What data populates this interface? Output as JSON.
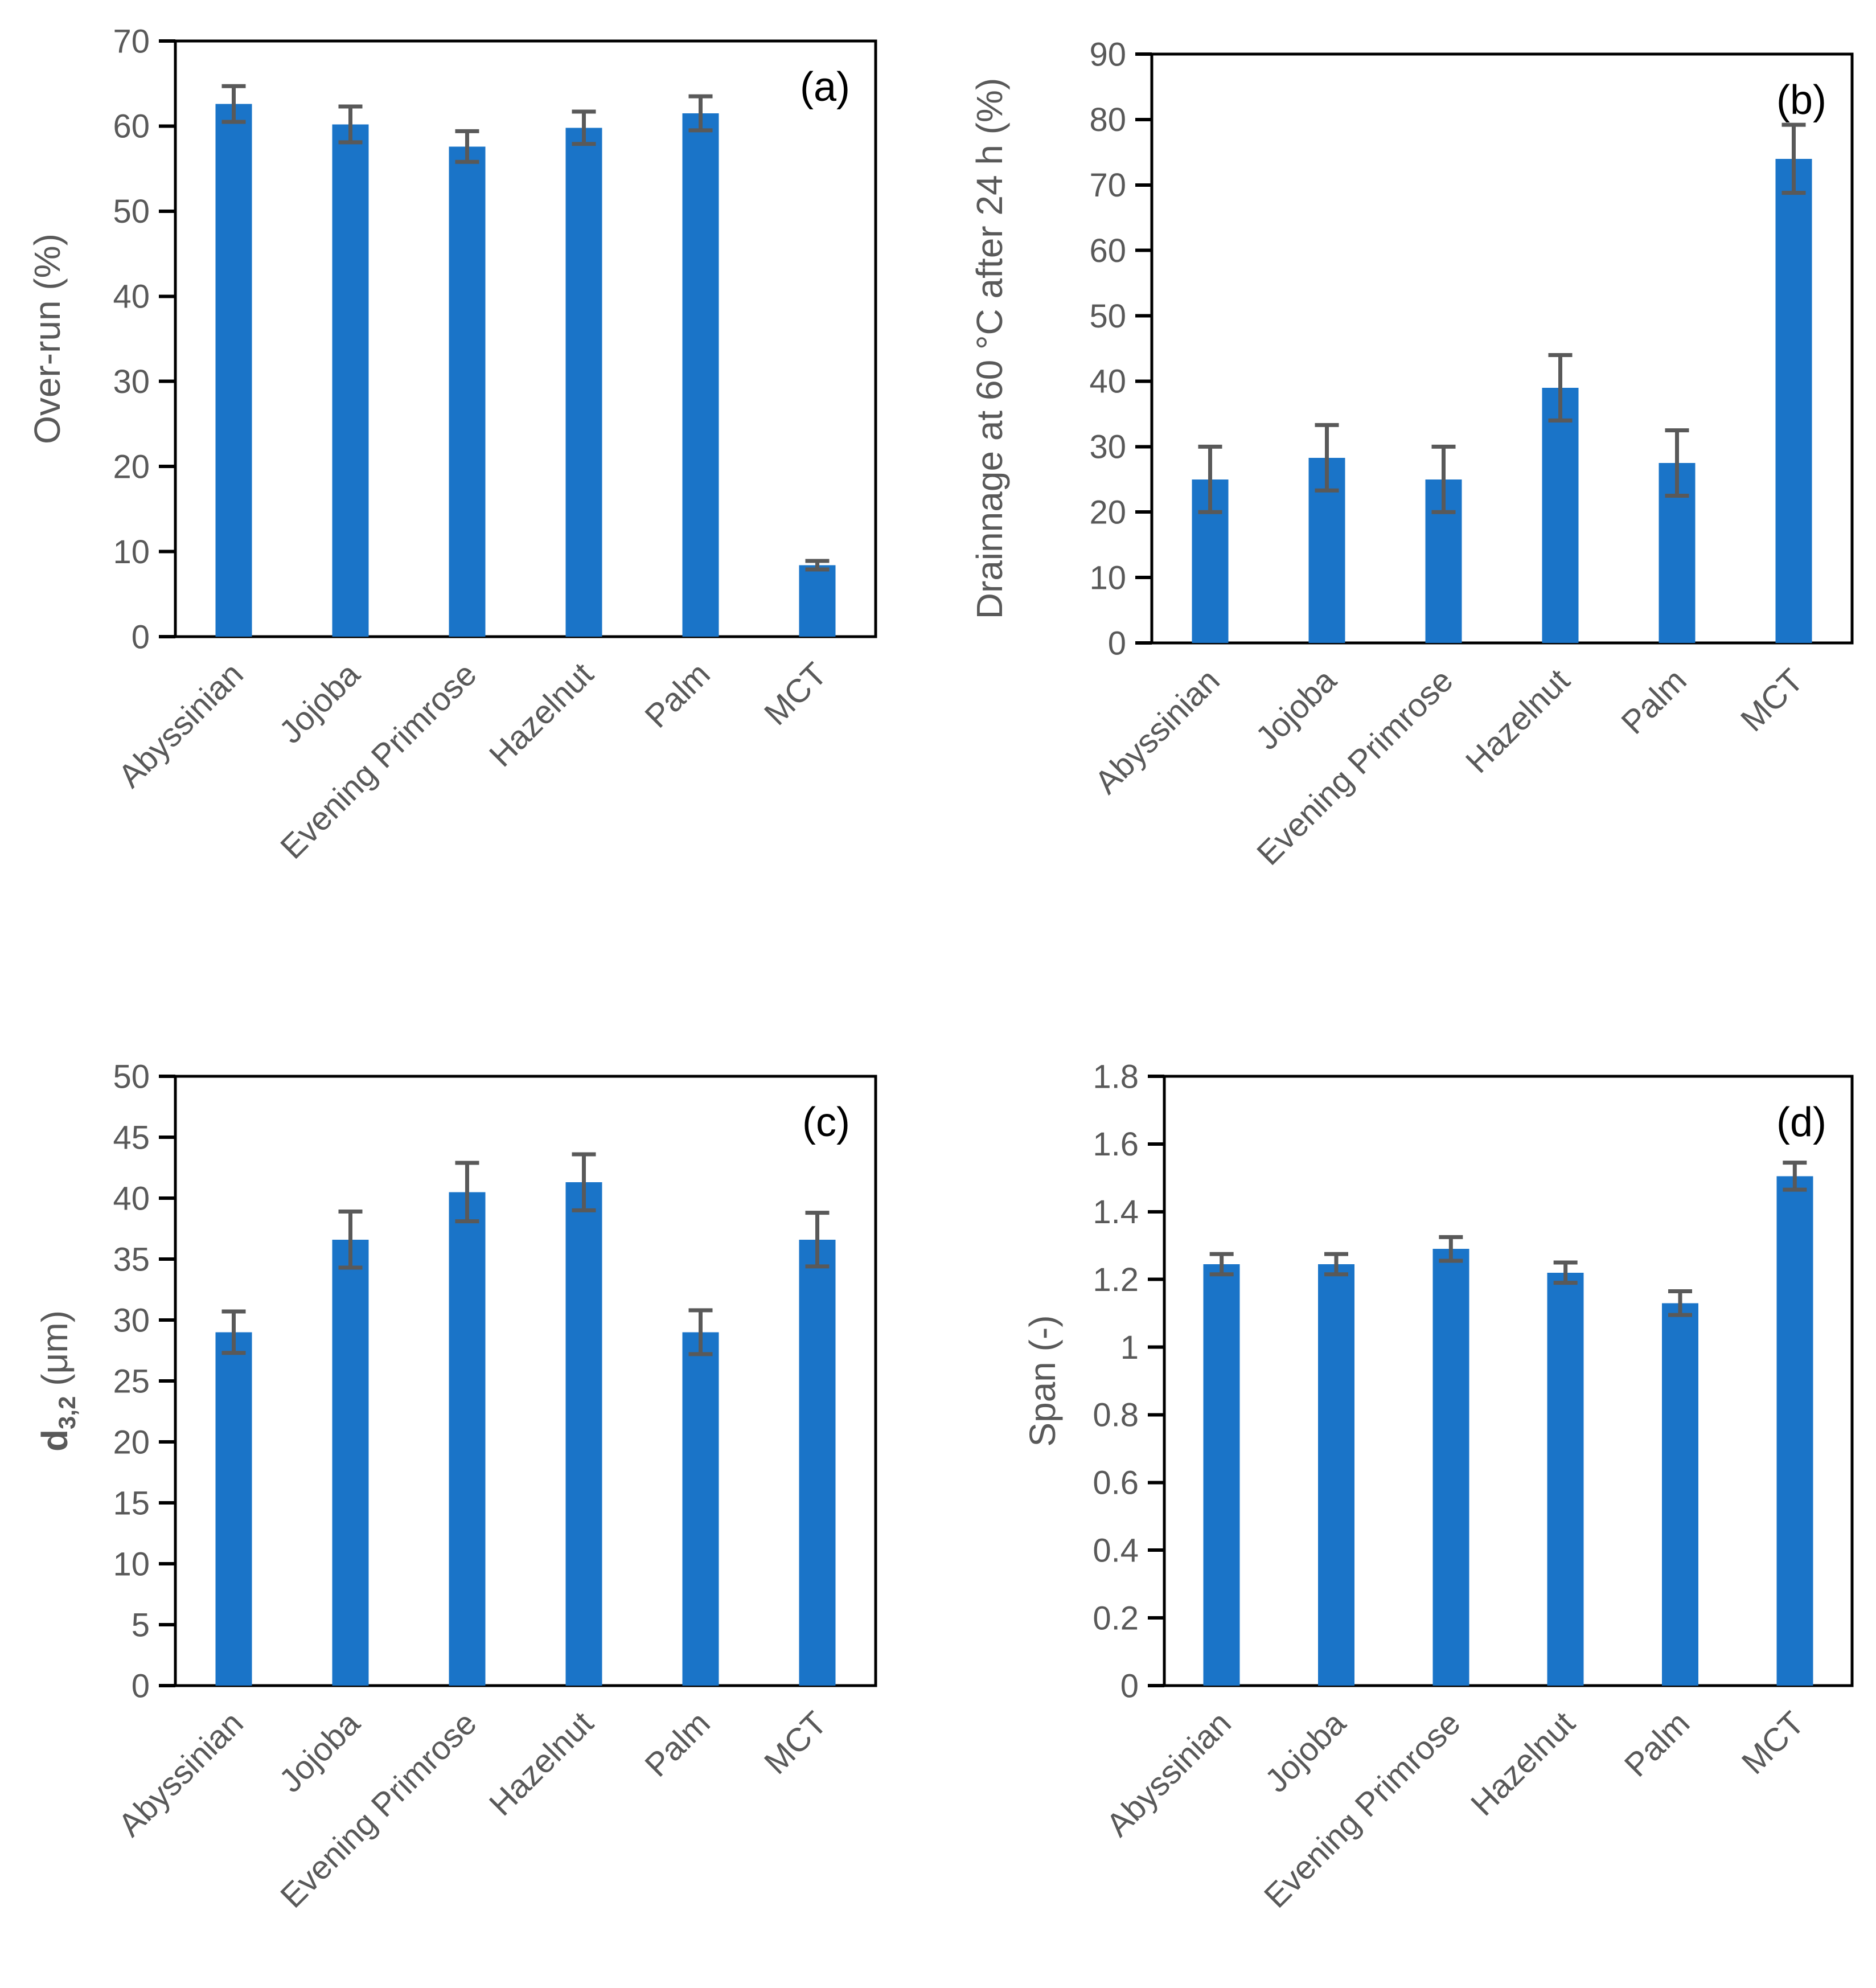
{
  "figure": {
    "description_title": "Four-panel bar chart figure (a)-(d)",
    "background": "#ffffff"
  },
  "styles": {
    "bar_color": "#1A74C8",
    "error_bar_color": "#595959",
    "axis_line_color": "#000000",
    "tick_text_color": "#595959",
    "axis_title_color": "#595959",
    "panel_letter_color": "#000000"
  },
  "categories": [
    "Abyssinian",
    "Jojoba",
    "Evening Primrose",
    "Hazelnut",
    "Palm",
    "MCT"
  ],
  "chart_data": [
    {
      "type": "bar",
      "panel_label": "(a)",
      "ylabel": "Over-run (%)",
      "ylabel_segments": [
        {
          "text": "Over-run (%)"
        }
      ],
      "xlabel": "",
      "ylim": [
        0,
        70
      ],
      "ytick_step": 10,
      "ytick_labels": [
        "0",
        "10",
        "20",
        "30",
        "40",
        "50",
        "60",
        "70"
      ],
      "grid": false,
      "legend_position": "none",
      "categories": [
        "Abyssinian",
        "Jojoba",
        "Evening Primrose",
        "Hazelnut",
        "Palm",
        "MCT"
      ],
      "values": [
        62.6,
        60.2,
        57.6,
        59.8,
        61.5,
        8.4
      ],
      "errors": [
        2.1,
        2.1,
        1.8,
        1.9,
        2.0,
        0.5
      ]
    },
    {
      "type": "bar",
      "panel_label": "(b)",
      "ylabel": "Drainnage at 60 °C after 24 h (%)",
      "ylabel_segments": [
        {
          "text": "Drainnage at 60 °C after 24 h (%)"
        }
      ],
      "xlabel": "",
      "ylim": [
        0,
        90
      ],
      "ytick_step": 10,
      "ytick_labels": [
        "0",
        "10",
        "20",
        "30",
        "40",
        "50",
        "60",
        "70",
        "80",
        "90"
      ],
      "grid": false,
      "legend_position": "none",
      "categories": [
        "Abyssinian",
        "Jojoba",
        "Evening Primrose",
        "Hazelnut",
        "Palm",
        "MCT"
      ],
      "values": [
        25.0,
        28.3,
        25.0,
        39.0,
        27.5,
        74.0
      ],
      "errors": [
        5.0,
        5.0,
        5.0,
        5.0,
        5.0,
        5.2
      ]
    },
    {
      "type": "bar",
      "panel_label": "(c)",
      "ylabel": "d3,2 (μm)",
      "ylabel_segments": [
        {
          "text": "d",
          "bold": true
        },
        {
          "text": "3,2",
          "bold": true,
          "sub": true
        },
        {
          "text": " (μm)"
        }
      ],
      "xlabel": "",
      "ylim": [
        0,
        50
      ],
      "ytick_step": 5,
      "ytick_labels": [
        "0",
        "5",
        "10",
        "15",
        "20",
        "25",
        "30",
        "35",
        "40",
        "45",
        "50"
      ],
      "grid": false,
      "legend_position": "none",
      "categories": [
        "Abyssinian",
        "Jojoba",
        "Evening Primrose",
        "Hazelnut",
        "Palm",
        "MCT"
      ],
      "values": [
        29.0,
        36.6,
        40.5,
        41.3,
        29.0,
        36.6
      ],
      "errors": [
        1.7,
        2.3,
        2.4,
        2.3,
        1.8,
        2.2
      ]
    },
    {
      "type": "bar",
      "panel_label": "(d)",
      "ylabel": "Span (-)",
      "ylabel_segments": [
        {
          "text": "Span (-)"
        }
      ],
      "xlabel": "",
      "ylim": [
        0,
        1.8
      ],
      "ytick_step": 0.2,
      "ytick_labels": [
        "0",
        "0.2",
        "0.4",
        "0.6",
        "0.8",
        "1",
        "1.2",
        "1.4",
        "1.6",
        "1.8"
      ],
      "grid": false,
      "legend_position": "none",
      "categories": [
        "Abyssinian",
        "Jojoba",
        "Evening Primrose",
        "Hazelnut",
        "Palm",
        "MCT"
      ],
      "values": [
        1.245,
        1.245,
        1.29,
        1.22,
        1.13,
        1.505
      ],
      "errors": [
        0.03,
        0.03,
        0.035,
        0.03,
        0.035,
        0.04
      ]
    }
  ]
}
